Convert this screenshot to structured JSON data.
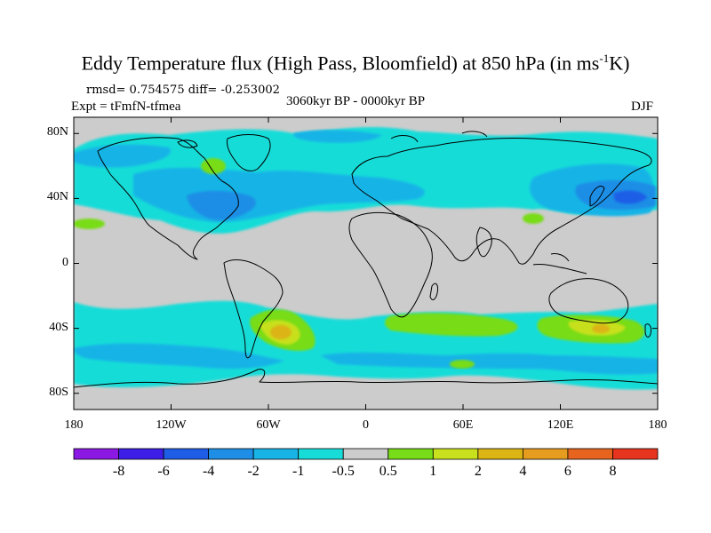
{
  "title": {
    "main": "Eddy Temperature flux (High Pass, Bloomfield) at 850 hPa (in ms",
    "sup": "-1",
    "tail": "K)"
  },
  "stats": "rmsd= 0.754575 diff= -0.253002",
  "experiment": "Expt = tFmfN-tfmea",
  "period": "3060kyr BP - 0000kyr BP",
  "season": "DJF",
  "axes": {
    "y_ticks": [
      {
        "label": "80N",
        "lat": 80
      },
      {
        "label": "40N",
        "lat": 40
      },
      {
        "label": "0",
        "lat": 0
      },
      {
        "label": "40S",
        "lat": -40
      },
      {
        "label": "80S",
        "lat": -80
      }
    ],
    "x_ticks": [
      {
        "label": "180",
        "lon": -180
      },
      {
        "label": "120W",
        "lon": -120
      },
      {
        "label": "60W",
        "lon": -60
      },
      {
        "label": "0",
        "lon": 0
      },
      {
        "label": "60E",
        "lon": 60
      },
      {
        "label": "120E",
        "lon": 120
      },
      {
        "label": "180",
        "lon": 180
      }
    ],
    "lon_range": [
      -180,
      180
    ],
    "lat_range": [
      -90,
      90
    ]
  },
  "colorbar": {
    "colors": [
      "#8c18e4",
      "#3c1ee6",
      "#1e5ee6",
      "#1e8ee6",
      "#18b4e6",
      "#18dcd8",
      "#cccccc",
      "#78dc18",
      "#c8e01e",
      "#dcb414",
      "#e69c1e",
      "#e6641e",
      "#e6341e"
    ],
    "labels": [
      "-8",
      "-6",
      "-4",
      "-2",
      "-1",
      "-0.5",
      "0.5",
      "1",
      "2",
      "4",
      "6",
      "8"
    ]
  },
  "colors": {
    "background": "#cccccc",
    "coast": "#000000"
  }
}
